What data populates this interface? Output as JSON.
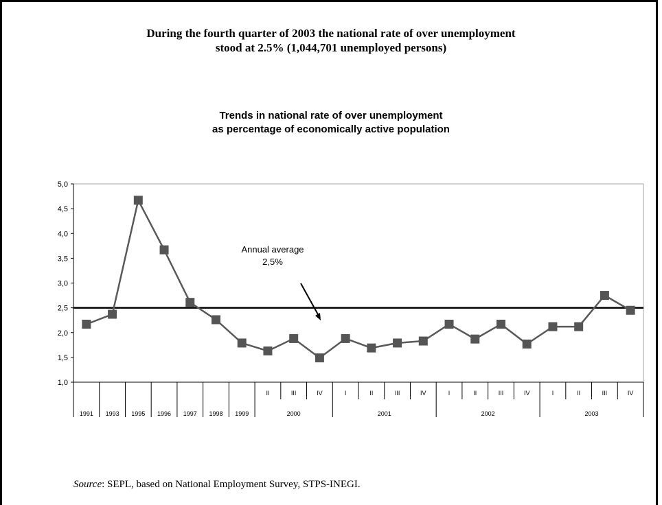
{
  "headline": {
    "line1": "During the fourth quarter of 2003 the national rate of over unemployment",
    "line2": "stood at 2.5% (1,044,701 unemployed persons)"
  },
  "source": {
    "label": "Source",
    "text": ":  SEPL, based on National Employment Survey, STPS-INEGI."
  },
  "chart_data": {
    "type": "line",
    "title_line1": "Trends in national rate of over unemployment",
    "title_line2": "as percentage of economically active population",
    "xlabel": "",
    "ylabel": "",
    "ylim": [
      1.0,
      5.0
    ],
    "yticks": [
      "1,0",
      "1,5",
      "2,0",
      "2,5",
      "3,0",
      "3,5",
      "4,0",
      "4,5",
      "5,0"
    ],
    "quarter_labels": [
      "",
      "",
      "",
      "",
      "",
      "",
      "",
      "II",
      "III",
      "IV",
      "I",
      "II",
      "III",
      "IV",
      "I",
      "II",
      "III",
      "IV",
      "I",
      "II",
      "III",
      "IV"
    ],
    "year_labels": [
      "1991",
      "1993",
      "1995",
      "1996",
      "1997",
      "1998",
      "1999",
      "2000",
      "2001",
      "2002",
      "2003"
    ],
    "year_spans": [
      1,
      1,
      1,
      1,
      1,
      1,
      1,
      3,
      4,
      4,
      4
    ],
    "values": [
      2.17,
      2.37,
      4.67,
      3.67,
      2.61,
      2.26,
      1.79,
      1.63,
      1.88,
      1.49,
      1.88,
      1.69,
      1.79,
      1.83,
      2.17,
      1.87,
      2.17,
      1.77,
      2.12,
      2.12,
      2.75,
      2.45
    ],
    "reference_line": {
      "value": 2.5,
      "label_line1": "Annual average",
      "label_line2": "2,5%"
    },
    "grid": false,
    "line_color": "#595959",
    "marker_color": "#555555",
    "reference_color": "#000000"
  }
}
